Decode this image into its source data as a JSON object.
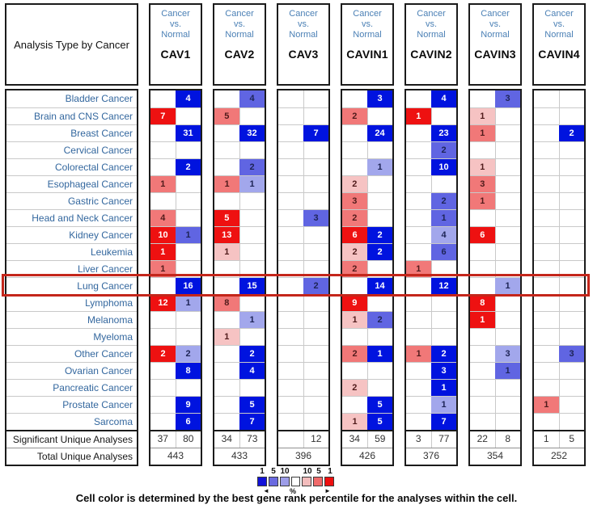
{
  "header": {
    "analysis_type_label": "Analysis Type by Cancer",
    "comparison_label": "Cancer vs. Normal"
  },
  "rows": [
    "Bladder Cancer",
    "Brain and CNS Cancer",
    "Breast Cancer",
    "Cervical Cancer",
    "Colorectal Cancer",
    "Esophageal Cancer",
    "Gastric Cancer",
    "Head and Neck Cancer",
    "Kidney Cancer",
    "Leukemia",
    "Liver Cancer",
    "Lung Cancer",
    "Lymphoma",
    "Melanoma",
    "Myeloma",
    "Other Cancer",
    "Ovarian Cancer",
    "Pancreatic Cancer",
    "Prostate Cancer",
    "Sarcoma"
  ],
  "highlighted_row": "Lung Cancer",
  "summary": {
    "significant_label": "Significant Unique Analyses",
    "total_label": "Total Unique Analyses"
  },
  "palette": {
    "b1": {
      "bg": "#0013DF",
      "fg": "#FFFFFF"
    },
    "b2": {
      "bg": "#6065E2",
      "fg": "#1D2455"
    },
    "b3": {
      "bg": "#A2A7EC",
      "fg": "#1D2455"
    },
    "r1": {
      "bg": "#EE1111",
      "fg": "#FFFFFF"
    },
    "r2": {
      "bg": "#F17878",
      "fg": "#501B1B"
    },
    "r3": {
      "bg": "#F6C3C3",
      "fg": "#501B1B"
    }
  },
  "columns": [
    {
      "gene": "CAV1",
      "up": [
        "",
        "7|r1",
        "",
        "",
        "",
        "1|r2",
        "",
        "4|r2",
        "10|r1",
        "1|r1",
        "1|r2",
        "",
        "12|r1",
        "",
        "",
        "2|r1",
        "",
        "",
        "",
        ""
      ],
      "down": [
        "4|b1",
        "",
        "31|b1",
        "",
        "2|b1",
        "",
        "",
        "",
        "1|b2",
        "",
        "",
        "16|b1",
        "1|b3",
        "",
        "",
        "2|b3",
        "8|b1",
        "",
        "9|b1",
        "6|b1"
      ],
      "significant": [
        "37",
        "80"
      ],
      "total": "443"
    },
    {
      "gene": "CAV2",
      "up": [
        "",
        "5|r2",
        "",
        "",
        "",
        "1|r2",
        "",
        "5|r1",
        "13|r1",
        "1|r3",
        "",
        "",
        "8|r2",
        "",
        "1|r3",
        "",
        "",
        "",
        "",
        ""
      ],
      "down": [
        "4|b2",
        "",
        "32|b1",
        "",
        "2|b2",
        "1|b3",
        "",
        "",
        "",
        "",
        "",
        "15|b1",
        "",
        "1|b3",
        "",
        "2|b1",
        "4|b1",
        "",
        "5|b1",
        "7|b1"
      ],
      "significant": [
        "34",
        "73"
      ],
      "total": "433"
    },
    {
      "gene": "CAV3",
      "up": [
        "",
        "",
        "",
        "",
        "",
        "",
        "",
        "",
        "",
        "",
        "",
        "",
        "",
        "",
        "",
        "",
        "",
        "",
        "",
        ""
      ],
      "down": [
        "",
        "",
        "7|b1",
        "",
        "",
        "",
        "",
        "3|b2",
        "",
        "",
        "",
        "2|b2",
        "",
        "",
        "",
        "",
        "",
        "",
        "",
        ""
      ],
      "significant": [
        "",
        "12"
      ],
      "total": "396"
    },
    {
      "gene": "CAVIN1",
      "up": [
        "",
        "2|r2",
        "",
        "",
        "",
        "2|r3",
        "3|r2",
        "2|r2",
        "6|r1",
        "2|r3",
        "2|r2",
        "",
        "9|r1",
        "1|r3",
        "",
        "2|r2",
        "",
        "2|r3",
        "",
        "1|r3"
      ],
      "down": [
        "3|b1",
        "",
        "24|b1",
        "",
        "1|b3",
        "",
        "",
        "",
        "2|b1",
        "2|b1",
        "",
        "14|b1",
        "",
        "2|b2",
        "",
        "1|b1",
        "",
        "",
        "5|b1",
        "5|b1"
      ],
      "significant": [
        "34",
        "59"
      ],
      "total": "426"
    },
    {
      "gene": "CAVIN2",
      "up": [
        "",
        "1|r1",
        "",
        "",
        "",
        "",
        "",
        "",
        "",
        "",
        "1|r2",
        "",
        "",
        "",
        "",
        "1|r2",
        "",
        "",
        "",
        ""
      ],
      "down": [
        "4|b1",
        "",
        "23|b1",
        "2|b2",
        "10|b1",
        "",
        "2|b2",
        "1|b2",
        "4|b3",
        "6|b2",
        "",
        "12|b1",
        "",
        "",
        "",
        "2|b1",
        "3|b1",
        "1|b1",
        "1|b3",
        "7|b1"
      ],
      "significant": [
        "3",
        "77"
      ],
      "total": "376"
    },
    {
      "gene": "CAVIN3",
      "up": [
        "",
        "1|r3",
        "1|r2",
        "",
        "1|r3",
        "3|r2",
        "1|r2",
        "",
        "6|r1",
        "",
        "",
        "",
        "8|r1",
        "1|r1",
        "",
        "",
        "",
        "",
        "",
        ""
      ],
      "down": [
        "3|b2",
        "",
        "",
        "",
        "",
        "",
        "",
        "",
        "",
        "",
        "",
        "1|b3",
        "",
        "",
        "",
        "3|b3",
        "1|b2",
        "",
        "",
        ""
      ],
      "significant": [
        "22",
        "8"
      ],
      "total": "354"
    },
    {
      "gene": "CAVIN4",
      "up": [
        "",
        "",
        "",
        "",
        "",
        "",
        "",
        "",
        "",
        "",
        "",
        "",
        "",
        "",
        "",
        "",
        "",
        "",
        "1|r2",
        ""
      ],
      "down": [
        "",
        "",
        "2|b1",
        "",
        "",
        "",
        "",
        "",
        "",
        "",
        "",
        "",
        "",
        "",
        "",
        "3|b2",
        "",
        "",
        "",
        ""
      ],
      "significant": [
        "1",
        "5"
      ],
      "total": "252"
    }
  ],
  "legend": {
    "left_numbers": [
      "1",
      "5",
      "10"
    ],
    "right_numbers": [
      "10",
      "5",
      "1"
    ],
    "swatches": [
      "#1212D9",
      "#6A6AE0",
      "#9D9DE8",
      "#FFFFFF",
      "#F2BCBC",
      "#F06A6A",
      "#EE0F0F"
    ],
    "percent_label": "%",
    "left_arrow": "◄",
    "right_arrow": "►"
  },
  "highlight_color": "#C4261B",
  "caption": "Cell color is determined by the best gene rank percentile for the analyses within the cell."
}
